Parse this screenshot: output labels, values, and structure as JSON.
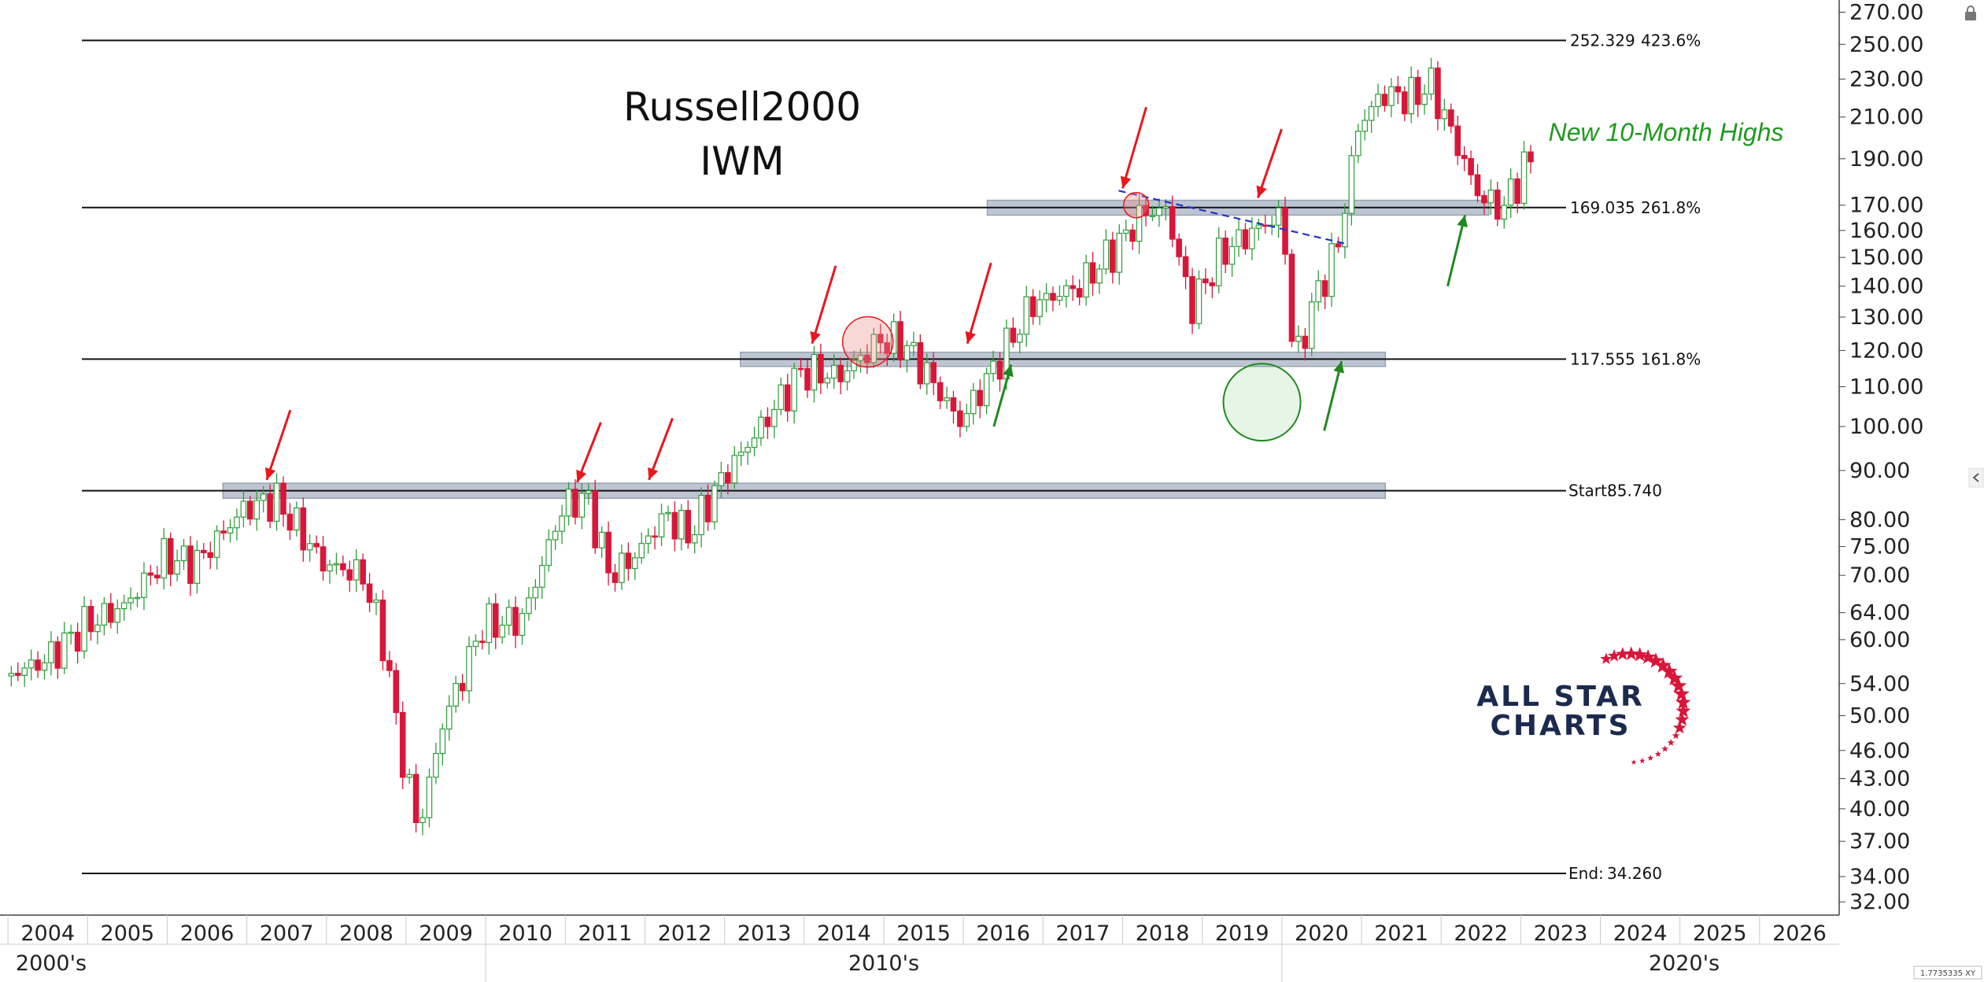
{
  "chart_data": {
    "type": "candlestick",
    "title": "Russell2000",
    "subtitle": "IWM",
    "annotation": "New 10-Month Highs",
    "logo": {
      "line1": "ALL STAR",
      "line2": "CHARTS"
    },
    "yaxis": {
      "scale": "log",
      "range": [
        31,
        278
      ],
      "ticks": [
        "270.00",
        "250.00",
        "230.00",
        "210.00",
        "190.00",
        "170.00",
        "160.00",
        "150.00",
        "140.00",
        "130.00",
        "120.00",
        "110.00",
        "100.00",
        "90.00",
        "80.00",
        "75.00",
        "70.00",
        "64.00",
        "60.00",
        "54.00",
        "50.00",
        "46.00",
        "43.00",
        "40.00",
        "37.00",
        "34.00",
        "32.00"
      ]
    },
    "xaxis": {
      "range": [
        2003.9,
        2027
      ],
      "years": [
        "2004",
        "2005",
        "2006",
        "2007",
        "2008",
        "2009",
        "2010",
        "2011",
        "2012",
        "2013",
        "2014",
        "2015",
        "2016",
        "2017",
        "2018",
        "2019",
        "2020",
        "2021",
        "2022",
        "2023",
        "2024",
        "2025",
        "2026"
      ],
      "decades": [
        {
          "label": "2000's",
          "start": 2003.9,
          "end": 2010.0
        },
        {
          "label": "2010's",
          "start": 2010.0,
          "end": 2020.0
        },
        {
          "label": "2020's",
          "start": 2020.0,
          "end": 2027.0
        }
      ]
    },
    "levels": [
      {
        "price": 252.329,
        "label": "252.329",
        "tag": "423.6%"
      },
      {
        "price": 169.035,
        "label": "169.035",
        "tag": "261.8%"
      },
      {
        "price": 117.555,
        "label": "117.555",
        "tag": "161.8%"
      },
      {
        "price": 85.74,
        "label": "85.740",
        "tag": "Start:"
      },
      {
        "price": 34.26,
        "label": "34.260",
        "tag": "End:"
      }
    ],
    "zones": [
      {
        "price_low": 166,
        "price_high": 172,
        "x_start": 2016.3,
        "x_end": 2022.6
      },
      {
        "price_low": 115.5,
        "price_high": 119.5,
        "x_start": 2013.2,
        "x_end": 2021.3
      },
      {
        "price_low": 84.2,
        "price_high": 87.3,
        "x_start": 2006.7,
        "x_end": 2021.3
      }
    ],
    "trendline": {
      "points": [
        [
          2017.95,
          176
        ],
        [
          2020.8,
          155
        ]
      ],
      "color": "#2233cc"
    },
    "anchors": [
      {
        "x": 2004.0,
        "y": 55
      },
      {
        "x": 2004.5,
        "y": 57
      },
      {
        "x": 2005.0,
        "y": 62
      },
      {
        "x": 2005.5,
        "y": 65
      },
      {
        "x": 2006.0,
        "y": 73
      },
      {
        "x": 2006.4,
        "y": 72
      },
      {
        "x": 2007.0,
        "y": 82
      },
      {
        "x": 2007.4,
        "y": 84
      },
      {
        "x": 2007.7,
        "y": 78
      },
      {
        "x": 2008.0,
        "y": 72
      },
      {
        "x": 2008.5,
        "y": 70
      },
      {
        "x": 2008.75,
        "y": 60
      },
      {
        "x": 2009.0,
        "y": 45
      },
      {
        "x": 2009.2,
        "y": 38
      },
      {
        "x": 2009.5,
        "y": 49
      },
      {
        "x": 2010.0,
        "y": 62
      },
      {
        "x": 2010.5,
        "y": 63
      },
      {
        "x": 2011.0,
        "y": 82
      },
      {
        "x": 2011.3,
        "y": 85
      },
      {
        "x": 2011.6,
        "y": 70
      },
      {
        "x": 2011.9,
        "y": 73
      },
      {
        "x": 2012.3,
        "y": 81
      },
      {
        "x": 2012.6,
        "y": 77
      },
      {
        "x": 2013.0,
        "y": 88
      },
      {
        "x": 2013.5,
        "y": 100
      },
      {
        "x": 2014.0,
        "y": 114
      },
      {
        "x": 2014.5,
        "y": 113
      },
      {
        "x": 2015.0,
        "y": 123
      },
      {
        "x": 2015.3,
        "y": 122
      },
      {
        "x": 2015.6,
        "y": 113
      },
      {
        "x": 2016.0,
        "y": 101
      },
      {
        "x": 2016.4,
        "y": 114
      },
      {
        "x": 2016.9,
        "y": 134
      },
      {
        "x": 2017.5,
        "y": 140
      },
      {
        "x": 2018.0,
        "y": 155
      },
      {
        "x": 2018.3,
        "y": 167
      },
      {
        "x": 2018.6,
        "y": 168
      },
      {
        "x": 2018.9,
        "y": 133
      },
      {
        "x": 2019.3,
        "y": 152
      },
      {
        "x": 2019.8,
        "y": 162
      },
      {
        "x": 2020.05,
        "y": 166
      },
      {
        "x": 2020.2,
        "y": 115
      },
      {
        "x": 2020.4,
        "y": 132
      },
      {
        "x": 2020.75,
        "y": 155
      },
      {
        "x": 2021.0,
        "y": 205
      },
      {
        "x": 2021.3,
        "y": 222
      },
      {
        "x": 2021.7,
        "y": 220
      },
      {
        "x": 2021.9,
        "y": 228
      },
      {
        "x": 2022.2,
        "y": 200
      },
      {
        "x": 2022.5,
        "y": 175
      },
      {
        "x": 2022.8,
        "y": 168
      },
      {
        "x": 2023.0,
        "y": 180
      },
      {
        "x": 2023.1,
        "y": 188
      }
    ],
    "arrows": [
      {
        "color": "red",
        "x": 2007.25,
        "y_from": 104,
        "y_to": 88
      },
      {
        "color": "red",
        "x": 2011.15,
        "y_from": 101,
        "y_to": 87.5
      },
      {
        "color": "red",
        "x": 2012.05,
        "y_from": 102,
        "y_to": 88
      },
      {
        "color": "red",
        "x": 2014.1,
        "y_from": 147,
        "y_to": 122
      },
      {
        "color": "red",
        "x": 2016.05,
        "y_from": 148,
        "y_to": 122
      },
      {
        "color": "red",
        "x": 2018.0,
        "y_from": 215,
        "y_to": 177
      },
      {
        "color": "red",
        "x": 2019.7,
        "y_from": 204,
        "y_to": 173
      },
      {
        "color": "green",
        "x": 2016.6,
        "y_from": 100,
        "y_to": 116
      },
      {
        "color": "green",
        "x": 2020.75,
        "y_from": 99,
        "y_to": 117
      },
      {
        "color": "green",
        "x": 2022.3,
        "y_from": 140,
        "y_to": 166
      }
    ],
    "circles": [
      {
        "x": 2014.8,
        "y": 122.5,
        "kind": "red"
      },
      {
        "x": 2018.17,
        "y": 170,
        "kind": "red-small"
      },
      {
        "x": 2019.75,
        "y": 106,
        "kind": "green"
      }
    ],
    "colors": {
      "up": "#2e9d3a",
      "down": "#d8163a",
      "level": "#111111",
      "zone": "#b3bccb",
      "red_arrow": "#e8161d",
      "green_arrow": "#1e8a1e",
      "annotation": "#1e9a1e",
      "logo_navy": "#1b2a4e",
      "logo_red": "#d8163a"
    }
  },
  "ui": {
    "lock_icon": "lock-icon",
    "side_toggle": "chevron-left-icon",
    "scale_readout": "1.7735335 XY"
  }
}
